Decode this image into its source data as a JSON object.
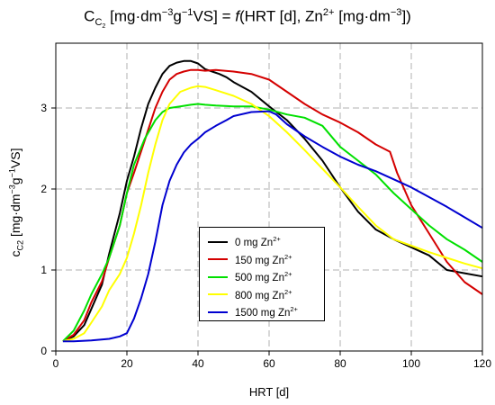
{
  "title": {
    "c": "C",
    "c_sub": "C",
    "c_sub2": "2",
    "units": " [mg·dm",
    "units_sup1": "−3",
    "units2": "g",
    "units_sup2": "−1",
    "units3": "VS] = ",
    "f": "f",
    "args": "(HRT [d], Zn",
    "zn_sup": "2+",
    "args2": " [mg·dm",
    "args_sup": "−3",
    "args3": "])"
  },
  "chart_data": {
    "type": "line",
    "xlabel": "HRT [d]",
    "ylabel": "c",
    "ylabel_sub": "C2",
    "ylabel_units": " [mg·dm",
    "ylabel_sup1": "−3",
    "ylabel_units2": "g",
    "ylabel_sup2": "−1",
    "ylabel_units3": "VS]",
    "xlim": [
      0,
      120
    ],
    "ylim": [
      0,
      3.8
    ],
    "xticks": [
      0,
      20,
      40,
      60,
      80,
      100,
      120
    ],
    "yticks": [
      0,
      1,
      2,
      3
    ],
    "grid": true,
    "legend_position": "bottom-center",
    "series": [
      {
        "name": "0 mg Zn",
        "name_sup": "2+",
        "color": "#000000",
        "x": [
          2,
          5,
          8,
          10,
          13,
          15,
          18,
          20,
          22,
          24,
          26,
          28,
          30,
          32,
          34,
          36,
          38,
          40,
          42,
          44,
          46,
          48,
          50,
          55,
          60,
          65,
          70,
          75,
          80,
          85,
          90,
          95,
          100,
          105,
          110,
          115,
          120
        ],
        "y": [
          0.12,
          0.18,
          0.32,
          0.52,
          0.82,
          1.2,
          1.7,
          2.1,
          2.4,
          2.75,
          3.05,
          3.25,
          3.42,
          3.52,
          3.56,
          3.58,
          3.58,
          3.55,
          3.48,
          3.45,
          3.42,
          3.38,
          3.32,
          3.2,
          3.02,
          2.85,
          2.62,
          2.35,
          2.02,
          1.72,
          1.5,
          1.38,
          1.28,
          1.18,
          1.0,
          0.96,
          0.92
        ]
      },
      {
        "name": "150 mg Zn",
        "name_sup": "2+",
        "color": "#d40000",
        "x": [
          2,
          5,
          8,
          10,
          13,
          15,
          18,
          20,
          22,
          25,
          28,
          30,
          32,
          34,
          36,
          38,
          40,
          42,
          45,
          50,
          55,
          60,
          65,
          70,
          75,
          80,
          85,
          90,
          94,
          96,
          100,
          105,
          110,
          115,
          120
        ],
        "y": [
          0.12,
          0.2,
          0.38,
          0.6,
          0.86,
          1.15,
          1.55,
          1.95,
          2.2,
          2.6,
          3.0,
          3.2,
          3.35,
          3.42,
          3.45,
          3.47,
          3.47,
          3.46,
          3.47,
          3.45,
          3.42,
          3.35,
          3.2,
          3.05,
          2.92,
          2.82,
          2.7,
          2.55,
          2.46,
          2.2,
          1.8,
          1.45,
          1.1,
          0.85,
          0.7
        ]
      },
      {
        "name": "500 mg Zn",
        "name_sup": "2+",
        "color": "#00e000",
        "x": [
          2,
          5,
          8,
          10,
          13,
          15,
          18,
          20,
          22,
          25,
          28,
          30,
          32,
          35,
          38,
          40,
          42,
          45,
          50,
          55,
          60,
          65,
          70,
          75,
          80,
          85,
          90,
          95,
          100,
          105,
          110,
          115,
          120
        ],
        "y": [
          0.12,
          0.25,
          0.5,
          0.7,
          0.95,
          1.15,
          1.55,
          1.95,
          2.3,
          2.62,
          2.85,
          2.95,
          3.0,
          3.02,
          3.04,
          3.05,
          3.04,
          3.03,
          3.02,
          3.02,
          2.98,
          2.92,
          2.88,
          2.78,
          2.52,
          2.35,
          2.18,
          1.95,
          1.75,
          1.55,
          1.38,
          1.25,
          1.1
        ]
      },
      {
        "name": "800 mg Zn",
        "name_sup": "2+",
        "color": "#ffff00",
        "x": [
          2,
          5,
          8,
          10,
          13,
          15,
          18,
          20,
          22,
          24,
          26,
          28,
          30,
          32,
          35,
          38,
          40,
          42,
          45,
          50,
          55,
          60,
          65,
          70,
          75,
          80,
          85,
          90,
          95,
          100,
          105,
          110,
          115,
          120
        ],
        "y": [
          0.12,
          0.15,
          0.22,
          0.35,
          0.55,
          0.75,
          0.95,
          1.15,
          1.45,
          1.8,
          2.2,
          2.55,
          2.85,
          3.05,
          3.2,
          3.25,
          3.27,
          3.26,
          3.22,
          3.15,
          3.05,
          2.9,
          2.7,
          2.48,
          2.25,
          2.02,
          1.78,
          1.55,
          1.38,
          1.3,
          1.22,
          1.15,
          1.08,
          1.02
        ]
      },
      {
        "name": "1500 mg Zn",
        "name_sup": "2+",
        "color": "#0000d0",
        "x": [
          2,
          5,
          10,
          15,
          18,
          20,
          22,
          24,
          26,
          28,
          30,
          32,
          34,
          36,
          38,
          40,
          42,
          45,
          48,
          50,
          55,
          60,
          62,
          65,
          70,
          75,
          80,
          85,
          90,
          95,
          100,
          105,
          110,
          115,
          120
        ],
        "y": [
          0.12,
          0.12,
          0.13,
          0.15,
          0.18,
          0.22,
          0.4,
          0.65,
          0.95,
          1.35,
          1.8,
          2.1,
          2.3,
          2.45,
          2.55,
          2.62,
          2.7,
          2.78,
          2.85,
          2.9,
          2.95,
          2.96,
          2.92,
          2.8,
          2.65,
          2.52,
          2.4,
          2.3,
          2.22,
          2.12,
          2.02,
          1.9,
          1.78,
          1.65,
          1.52
        ]
      }
    ]
  }
}
